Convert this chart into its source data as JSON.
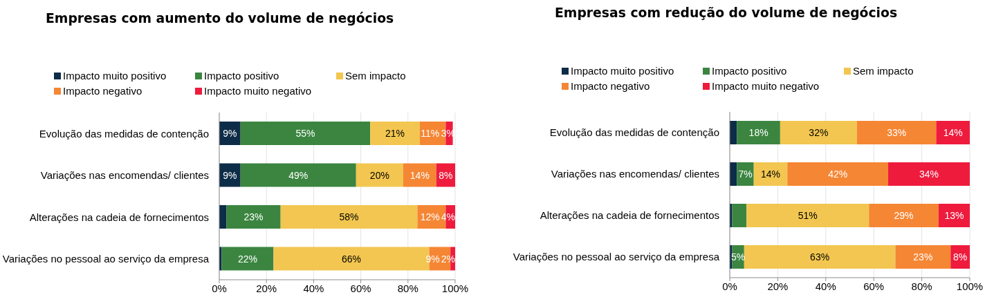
{
  "chart_data": [
    {
      "type": "bar",
      "orientation": "horizontal",
      "stacked": true,
      "title": "Empresas com aumento do volume de negócios",
      "categories": [
        "Evolução das medidas de contenção",
        "Variações nas encomendas/ clientes",
        "Alterações na cadeia de fornecimentos",
        "Variações no pessoal ao serviço da empresa"
      ],
      "series": [
        {
          "name": "Impacto muito positivo",
          "color": "#0d2c47",
          "values": [
            9,
            9,
            3,
            1
          ],
          "value_labels": [
            "9%",
            "9%",
            null,
            null
          ]
        },
        {
          "name": "Impacto positivo",
          "color": "#3b8540",
          "values": [
            55,
            49,
            23,
            22
          ],
          "value_labels": [
            "55%",
            "49%",
            "23%",
            "22%"
          ]
        },
        {
          "name": "Sem impacto",
          "color": "#f2c650",
          "values": [
            21,
            20,
            58,
            66
          ],
          "value_labels": [
            "21%",
            "20%",
            "58%",
            "66%"
          ]
        },
        {
          "name": "Impacto negativo",
          "color": "#f58634",
          "values": [
            11,
            14,
            12,
            9
          ],
          "value_labels": [
            "11%",
            "14%",
            "12%",
            "9%"
          ]
        },
        {
          "name": "Impacto muito negativo",
          "color": "#ee1b3d",
          "values": [
            3,
            8,
            4,
            2
          ],
          "value_labels": [
            "3%",
            "8%",
            "4%",
            "2%"
          ]
        }
      ],
      "xlim": [
        0,
        100
      ],
      "xticks": [
        {
          "value": 0,
          "label": "0%"
        },
        {
          "value": 20,
          "label": "20%"
        },
        {
          "value": 40,
          "label": "40%"
        },
        {
          "value": 60,
          "label": "60%"
        },
        {
          "value": 80,
          "label": "80%"
        },
        {
          "value": 100,
          "label": "100%"
        }
      ],
      "grid": "x",
      "legend": "top"
    },
    {
      "type": "bar",
      "orientation": "horizontal",
      "stacked": true,
      "title": "Empresas com redução do volume de negócios",
      "categories": [
        "Evolução das medidas de contenção",
        "Variações nas encomendas/ clientes",
        "Alterações na cadeia de fornecimentos",
        "Variações no pessoal ao serviço da empresa"
      ],
      "series": [
        {
          "name": "Impacto muito positivo",
          "color": "#0d2c47",
          "values": [
            3,
            3,
            1,
            1
          ],
          "value_labels": [
            null,
            null,
            null,
            null
          ]
        },
        {
          "name": "Impacto positivo",
          "color": "#3b8540",
          "values": [
            18,
            7,
            6,
            5
          ],
          "value_labels": [
            "18%",
            "7%",
            null,
            "5%"
          ]
        },
        {
          "name": "Sem impacto",
          "color": "#f2c650",
          "values": [
            32,
            14,
            51,
            63
          ],
          "value_labels": [
            "32%",
            "14%",
            "51%",
            "63%"
          ]
        },
        {
          "name": "Impacto negativo",
          "color": "#f58634",
          "values": [
            33,
            42,
            29,
            23
          ],
          "value_labels": [
            "33%",
            "42%",
            "29%",
            "23%"
          ]
        },
        {
          "name": "Impacto muito negativo",
          "color": "#ee1b3d",
          "values": [
            14,
            34,
            13,
            8
          ],
          "value_labels": [
            "14%",
            "34%",
            "13%",
            "8%"
          ]
        }
      ],
      "xlim": [
        0,
        100
      ],
      "xticks": [
        {
          "value": 0,
          "label": "0%"
        },
        {
          "value": 20,
          "label": "20%"
        },
        {
          "value": 40,
          "label": "40%"
        },
        {
          "value": 60,
          "label": "60%"
        },
        {
          "value": 80,
          "label": "80%"
        },
        {
          "value": 100,
          "label": "100%"
        }
      ],
      "grid": "x",
      "legend": "top"
    }
  ]
}
